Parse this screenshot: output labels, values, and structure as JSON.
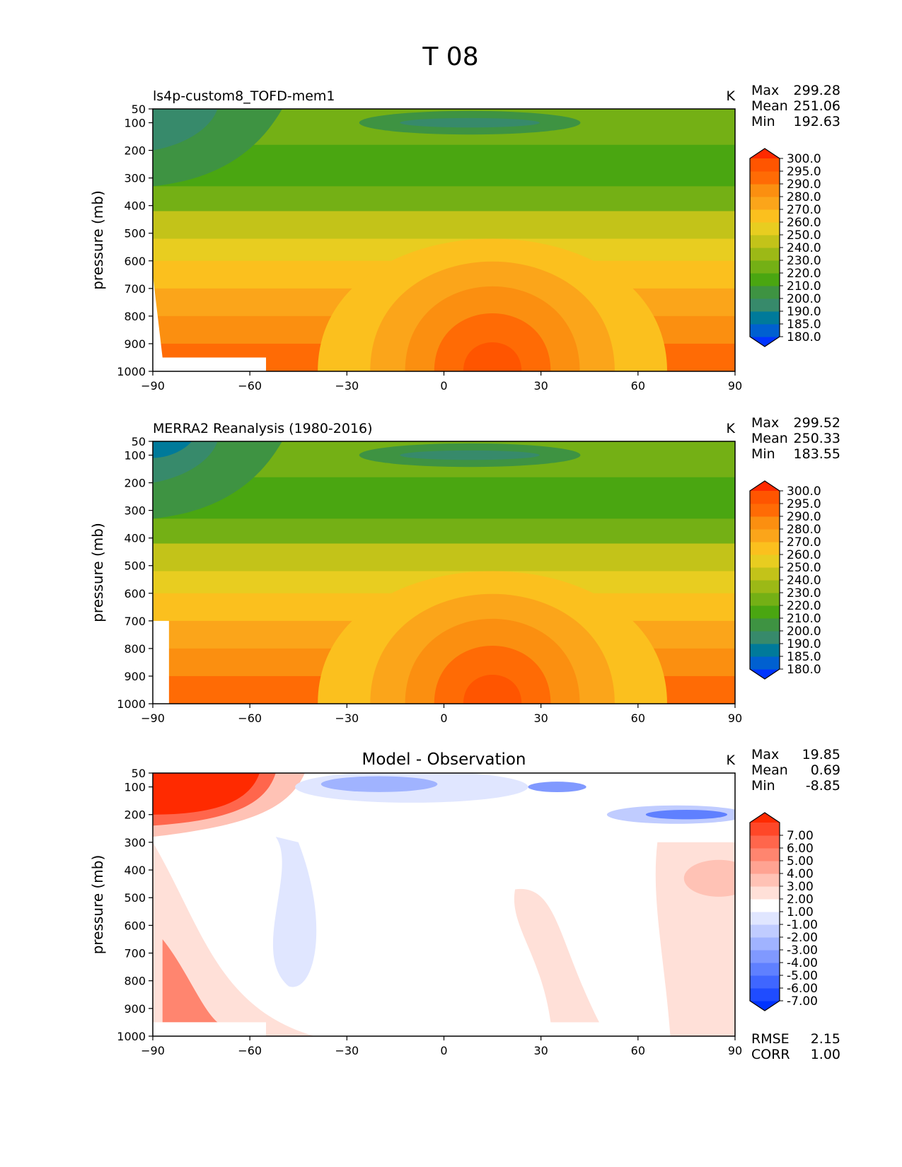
{
  "figure": {
    "title": "T 08",
    "x_ticks": [
      -90,
      -60,
      -30,
      0,
      30,
      60,
      90
    ],
    "x_tick_labels": [
      "−90",
      "−60",
      "−30",
      "0",
      "30",
      "60",
      "90"
    ],
    "y_ticks": [
      50,
      100,
      200,
      300,
      400,
      500,
      600,
      700,
      800,
      900,
      1000
    ],
    "y_tick_labels": [
      "50",
      "100",
      "200",
      "300",
      "400",
      "500",
      "600",
      "700",
      "800",
      "900",
      "1000"
    ],
    "ylabel": "pressure (mb)",
    "xlim": [
      -90,
      90
    ],
    "ylim": [
      50,
      1000
    ],
    "stat_labels": {
      "max": "Max",
      "mean": "Mean",
      "min": "Min",
      "rmse": "RMSE",
      "corr": "CORR"
    }
  },
  "chart_data": [
    {
      "type": "heatmap",
      "id": "model",
      "title": "ls4p-custom8_TOFD-mem1",
      "units": "K",
      "stats": {
        "max": "299.28",
        "mean": "251.06",
        "min": "192.63"
      },
      "colorbar_levels": [
        "180.0",
        "185.0",
        "190.0",
        "200.0",
        "210.0",
        "220.0",
        "230.0",
        "240.0",
        "250.0",
        "260.0",
        "270.0",
        "280.0",
        "290.0",
        "295.0",
        "300.0"
      ],
      "colorbar_colors": [
        "#0035ff",
        "#0060d0",
        "#007a9a",
        "#378a6b",
        "#3e9342",
        "#4aa611",
        "#74b015",
        "#9cb916",
        "#c3c319",
        "#e8cd20",
        "#fbc01e",
        "#fba51a",
        "#fb8f10",
        "#ff6b05",
        "#ff5500",
        "#ff2a00"
      ]
    },
    {
      "type": "heatmap",
      "id": "obs",
      "title": "MERRA2 Reanalysis (1980-2016)",
      "units": "K",
      "stats": {
        "max": "299.52",
        "mean": "250.33",
        "min": "183.55"
      },
      "colorbar_levels": [
        "180.0",
        "185.0",
        "190.0",
        "200.0",
        "210.0",
        "220.0",
        "230.0",
        "240.0",
        "250.0",
        "260.0",
        "270.0",
        "280.0",
        "290.0",
        "295.0",
        "300.0"
      ],
      "colorbar_colors": [
        "#0035ff",
        "#0060d0",
        "#007a9a",
        "#378a6b",
        "#3e9342",
        "#4aa611",
        "#74b015",
        "#9cb916",
        "#c3c319",
        "#e8cd20",
        "#fbc01e",
        "#fba51a",
        "#fb8f10",
        "#ff6b05",
        "#ff5500",
        "#ff2a00"
      ]
    },
    {
      "type": "heatmap",
      "id": "diff",
      "title": "Model - Observation",
      "units": "K",
      "stats": {
        "max": "19.85",
        "mean": "0.69",
        "min": "-8.85"
      },
      "rmse": "2.15",
      "corr": "1.00",
      "colorbar_levels": [
        "-7.00",
        "-6.00",
        "-5.00",
        "-4.00",
        "-3.00",
        "-2.00",
        "-1.00",
        "1.00",
        "2.00",
        "3.00",
        "4.00",
        "5.00",
        "6.00",
        "7.00"
      ],
      "colorbar_colors": [
        "#0033ff",
        "#1f4cff",
        "#3f66ff",
        "#5f80ff",
        "#8099ff",
        "#a0b3ff",
        "#c0ccff",
        "#e0e6ff",
        "#ffffff",
        "#ffe0d8",
        "#ffc2b5",
        "#ffa392",
        "#ff856f",
        "#ff664c",
        "#ff4728",
        "#ff2a00"
      ]
    }
  ]
}
